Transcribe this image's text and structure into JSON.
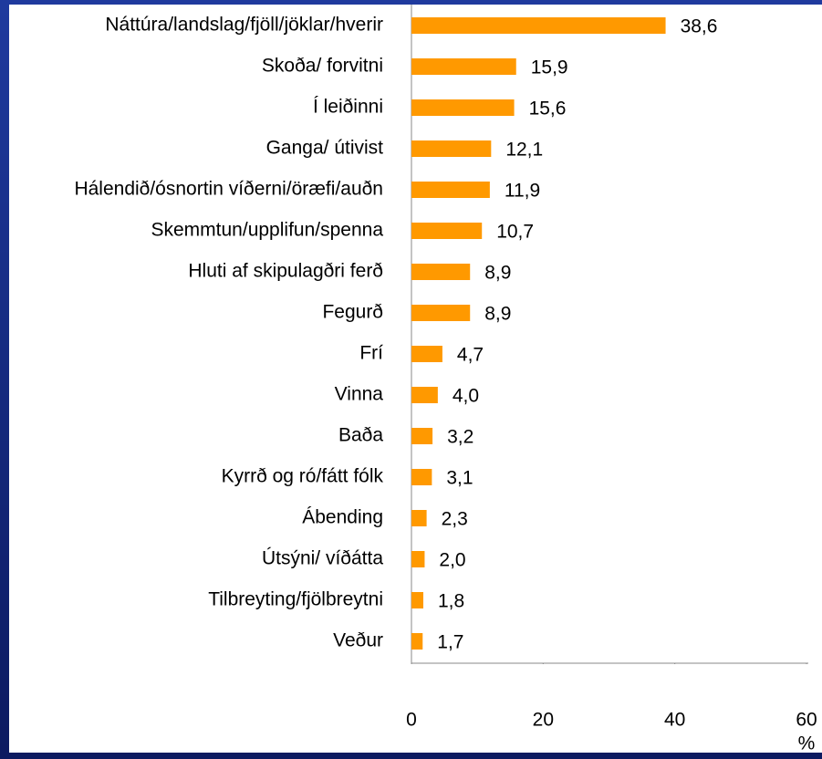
{
  "chart_data": {
    "type": "bar",
    "orientation": "horizontal",
    "categories": [
      "Náttúra/landslag/fjöll/jöklar/hverir",
      "Skoða/ forvitni",
      "Í leiðinni",
      "Ganga/ útivist",
      "Hálendið/ósnortin víðerni/öræfi/auðn",
      "Skemmtun/upplifun/spenna",
      "Hluti af skipulagðri ferð",
      "Fegurð",
      "Frí",
      "Vinna",
      "Baða",
      "Kyrrð og ró/fátt fólk",
      "Ábending",
      "Útsýni/ víðátta",
      "Tilbreyting/fjölbreytni",
      "Veður"
    ],
    "values": [
      38.6,
      15.9,
      15.6,
      12.1,
      11.9,
      10.7,
      8.9,
      8.9,
      4.7,
      4.0,
      3.2,
      3.1,
      2.3,
      2.0,
      1.8,
      1.7
    ],
    "value_labels": [
      "38,6",
      "15,9",
      "15,6",
      "12,1",
      "11,9",
      "10,7",
      "8,9",
      "8,9",
      "4,7",
      "4,0",
      "3,2",
      "3,1",
      "2,3",
      "2,0",
      "1,8",
      "1,7"
    ],
    "color": "#ff9900",
    "xlim": [
      0,
      60
    ],
    "xticks": [
      0,
      20,
      40,
      60
    ],
    "xlabel": "%"
  }
}
